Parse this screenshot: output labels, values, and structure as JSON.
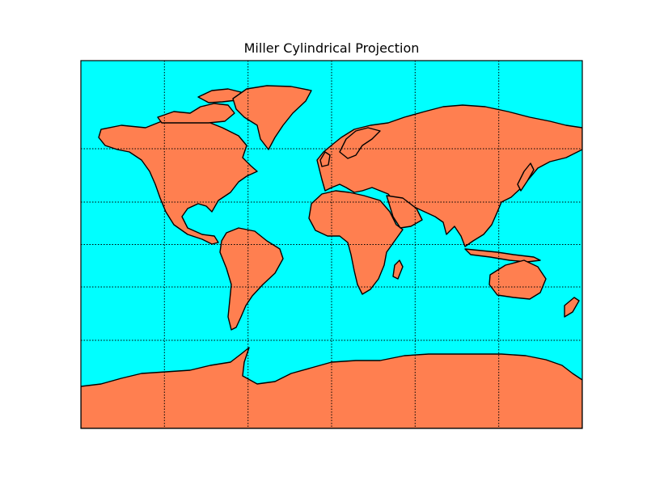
{
  "title": "Miller Cylindrical Projection",
  "projection": "Miller Cylindrical",
  "colors": {
    "ocean": "#00ffff",
    "land": "#ff7f50",
    "coastline": "#000000",
    "frame": "#000000",
    "grid": "#000000"
  },
  "map_extent": {
    "lon_range": [
      -180,
      180
    ],
    "lat_range": [
      -90,
      90
    ]
  },
  "graticule": {
    "meridians": [
      -120,
      -60,
      0,
      60,
      120
    ],
    "parallels": [
      -60,
      -30,
      0,
      30,
      60
    ],
    "style": "dotted",
    "labels_shown": false
  }
}
